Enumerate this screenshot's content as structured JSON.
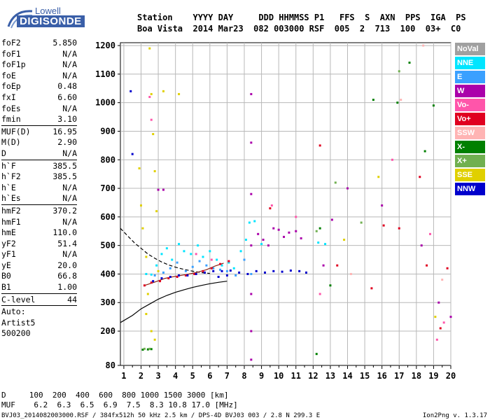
{
  "logo": {
    "line1": "Lowell",
    "line2": "DIGISONDE"
  },
  "header": {
    "labels": "Station    YYYY DAY     DDD HHMMSS P1   FFS  S  AXN  PPS  IGA  PS",
    "values": "Boa Vista  2014 Mar23  082 003000 RSF  005  2  713  100  03+  C0"
  },
  "params": [
    {
      "label": "foF2",
      "value": "5.850"
    },
    {
      "label": "foF1",
      "value": "N/A"
    },
    {
      "label": "foF1p",
      "value": "N/A"
    },
    {
      "label": "foE",
      "value": "N/A"
    },
    {
      "label": "foEp",
      "value": "0.48"
    },
    {
      "label": "fxI",
      "value": "6.60"
    },
    {
      "label": "foEs",
      "value": "N/A"
    },
    {
      "label": "fmin",
      "value": "3.10"
    },
    {
      "label": "MUF(D)",
      "value": "16.95"
    },
    {
      "label": "M(D)",
      "value": "2.90"
    },
    {
      "label": "D",
      "value": "N/A"
    },
    {
      "label": "h`F",
      "value": "385.5"
    },
    {
      "label": "h`F2",
      "value": "385.5"
    },
    {
      "label": "h`E",
      "value": "N/A"
    },
    {
      "label": "h`Es",
      "value": "N/A"
    },
    {
      "label": "hmF2",
      "value": "370.2"
    },
    {
      "label": "hmF1",
      "value": "N/A"
    },
    {
      "label": "hmE",
      "value": "110.0"
    },
    {
      "label": "yF2",
      "value": "51.4"
    },
    {
      "label": "yF1",
      "value": "N/A"
    },
    {
      "label": "yE",
      "value": "20.0"
    },
    {
      "label": "B0",
      "value": "66.8"
    },
    {
      "label": "B1",
      "value": "1.00"
    },
    {
      "label": "C-level",
      "value": "44"
    }
  ],
  "auto": {
    "line1": "Auto:",
    "line2": "Artist5",
    "line3": "500200"
  },
  "legend": [
    {
      "label": "NoVal",
      "color": "#a0a0a0"
    },
    {
      "label": "NNE",
      "color": "#00e5ff"
    },
    {
      "label": "E",
      "color": "#3aa0ff"
    },
    {
      "label": "W",
      "color": "#aa00aa"
    },
    {
      "label": "Vo-",
      "color": "#ff55aa"
    },
    {
      "label": "Vo+",
      "color": "#e00020"
    },
    {
      "label": "SSW",
      "color": "#ffb4b4"
    },
    {
      "label": "X-",
      "color": "#008000"
    },
    {
      "label": "X+",
      "color": "#70b050"
    },
    {
      "label": "SSE",
      "color": "#e0d000"
    },
    {
      "label": "NNW",
      "color": "#0000cc"
    }
  ],
  "muf_table": {
    "d_row": "D     100  200  400  600  800 1000 1500 3000 [km]",
    "muf_row": "MUF    6.2  6.3  6.5  6.9  7.5  8.3 10.8 17.0 [MHz]"
  },
  "footer": {
    "left": "BVJ03_2014082003000.RSF / 384fx512h 50 kHz 2.5 km / DPS-4D BVJ03 003 / 2.8 N 299.3 E",
    "right": "Ion2Png v. 1.3.17"
  },
  "chart_data": {
    "type": "scatter",
    "title": "",
    "xlabel": "",
    "ylabel": "",
    "xlim": [
      0.8,
      20
    ],
    "ylim": [
      80,
      1210
    ],
    "x_ticks": [
      1,
      2,
      3,
      4,
      5,
      6,
      7,
      8,
      9,
      10,
      11,
      12,
      13,
      14,
      15,
      16,
      17,
      18,
      19,
      20
    ],
    "y_ticks": [
      80,
      200,
      300,
      400,
      500,
      600,
      700,
      800,
      900,
      1000,
      1100,
      1200
    ],
    "grid": true,
    "series": [
      {
        "name": "NNE",
        "color": "#00e5ff",
        "points": [
          [
            2.3,
            400
          ],
          [
            2.6,
            398
          ],
          [
            2.9,
            430
          ],
          [
            3.2,
            470
          ],
          [
            3.5,
            490
          ],
          [
            3.8,
            450
          ],
          [
            4.2,
            505
          ],
          [
            4.5,
            480
          ],
          [
            4.9,
            470
          ],
          [
            5.3,
            500
          ],
          [
            5.6,
            460
          ],
          [
            6.0,
            480
          ],
          [
            6.4,
            450
          ],
          [
            6.7,
            430
          ],
          [
            7.1,
            440
          ],
          [
            7.4,
            420
          ],
          [
            7.8,
            480
          ],
          [
            8.1,
            520
          ],
          [
            8.3,
            580
          ],
          [
            8.6,
            585
          ],
          [
            9.0,
            505
          ],
          [
            12.3,
            510
          ],
          [
            12.7,
            505
          ]
        ]
      },
      {
        "name": "E",
        "color": "#3aa0ff",
        "points": [
          [
            2.8,
            395
          ],
          [
            3.3,
            405
          ],
          [
            3.7,
            420
          ],
          [
            4.1,
            440
          ],
          [
            4.6,
            410
          ],
          [
            5.0,
            425
          ],
          [
            5.4,
            445
          ],
          [
            5.8,
            430
          ],
          [
            6.2,
            420
          ],
          [
            6.6,
            415
          ],
          [
            7.0,
            410
          ],
          [
            7.5,
            395
          ],
          [
            8.0,
            450
          ],
          [
            8.4,
            400
          ]
        ]
      },
      {
        "name": "W",
        "color": "#aa00aa",
        "points": [
          [
            8.8,
            540
          ],
          [
            9.1,
            520
          ],
          [
            9.4,
            500
          ],
          [
            9.7,
            560
          ],
          [
            10.0,
            555
          ],
          [
            10.3,
            530
          ],
          [
            10.6,
            545
          ],
          [
            11.0,
            550
          ],
          [
            11.3,
            525
          ],
          [
            8.4,
            1030
          ],
          [
            8.4,
            860
          ],
          [
            8.4,
            680
          ],
          [
            8.4,
            500
          ],
          [
            8.4,
            330
          ],
          [
            8.4,
            200
          ],
          [
            8.4,
            100
          ],
          [
            3.0,
            695
          ],
          [
            3.3,
            695
          ],
          [
            12.6,
            430
          ],
          [
            13.1,
            590
          ],
          [
            14.0,
            700
          ],
          [
            16.0,
            640
          ],
          [
            18.3,
            500
          ],
          [
            19.3,
            300
          ],
          [
            20.0,
            250
          ]
        ]
      },
      {
        "name": "Vo-",
        "color": "#ff55aa",
        "points": [
          [
            2.5,
            1020
          ],
          [
            2.6,
            940
          ],
          [
            5.2,
            470
          ],
          [
            6.1,
            450
          ],
          [
            9.6,
            640
          ],
          [
            11.0,
            600
          ],
          [
            12.4,
            330
          ],
          [
            16.6,
            800
          ],
          [
            18.8,
            540
          ],
          [
            19.2,
            170
          ],
          [
            19.6,
            230
          ]
        ]
      },
      {
        "name": "Vo+",
        "color": "#e00020",
        "points": [
          [
            2.2,
            360
          ],
          [
            2.6,
            370
          ],
          [
            3.1,
            375
          ],
          [
            3.6,
            385
          ],
          [
            4.1,
            390
          ],
          [
            4.6,
            395
          ],
          [
            5.1,
            400
          ],
          [
            5.6,
            410
          ],
          [
            6.1,
            420
          ],
          [
            6.6,
            435
          ],
          [
            7.1,
            445
          ],
          [
            9.5,
            630
          ],
          [
            12.4,
            850
          ],
          [
            13.4,
            430
          ],
          [
            15.4,
            350
          ],
          [
            16.1,
            570
          ],
          [
            17.0,
            560
          ],
          [
            18.2,
            740
          ],
          [
            18.6,
            430
          ],
          [
            19.4,
            210
          ],
          [
            19.8,
            420
          ]
        ]
      },
      {
        "name": "SSW",
        "color": "#ffb4b4",
        "points": [
          [
            17.1,
            1010
          ],
          [
            18.4,
            1200
          ],
          [
            19.5,
            380
          ],
          [
            14.2,
            400
          ]
        ]
      },
      {
        "name": "X-",
        "color": "#008000",
        "points": [
          [
            2.1,
            135
          ],
          [
            2.4,
            136
          ],
          [
            2.6,
            137
          ],
          [
            12.4,
            560
          ],
          [
            13.0,
            360
          ],
          [
            15.5,
            1010
          ],
          [
            16.9,
            1000
          ],
          [
            17.6,
            1140
          ],
          [
            18.5,
            830
          ],
          [
            19.0,
            990
          ],
          [
            12.2,
            120
          ]
        ]
      },
      {
        "name": "X+",
        "color": "#70b050",
        "points": [
          [
            2.2,
            138
          ],
          [
            2.5,
            138
          ],
          [
            12.2,
            550
          ],
          [
            13.3,
            720
          ],
          [
            14.8,
            580
          ],
          [
            17.0,
            1110
          ]
        ]
      },
      {
        "name": "SSE",
        "color": "#e0d000",
        "points": [
          [
            1.9,
            770
          ],
          [
            2.0,
            640
          ],
          [
            2.1,
            560
          ],
          [
            2.3,
            460
          ],
          [
            2.4,
            330
          ],
          [
            2.5,
            1190
          ],
          [
            2.6,
            1030
          ],
          [
            2.7,
            890
          ],
          [
            2.8,
            760
          ],
          [
            2.9,
            620
          ],
          [
            3.0,
            410
          ],
          [
            2.3,
            260
          ],
          [
            2.6,
            200
          ],
          [
            2.8,
            170
          ],
          [
            3.3,
            1040
          ],
          [
            4.2,
            1030
          ],
          [
            13.8,
            520
          ],
          [
            15.8,
            740
          ],
          [
            19.1,
            250
          ]
        ]
      },
      {
        "name": "NNW",
        "color": "#0000cc",
        "points": [
          [
            2.7,
            375
          ],
          [
            3.2,
            385
          ],
          [
            3.7,
            390
          ],
          [
            4.2,
            395
          ],
          [
            4.7,
            395
          ],
          [
            5.2,
            400
          ],
          [
            5.7,
            405
          ],
          [
            6.2,
            410
          ],
          [
            6.7,
            410
          ],
          [
            7.2,
            412
          ],
          [
            7.7,
            405
          ],
          [
            8.2,
            400
          ],
          [
            8.7,
            410
          ],
          [
            9.2,
            405
          ],
          [
            9.7,
            410
          ],
          [
            10.2,
            408
          ],
          [
            10.7,
            412
          ],
          [
            11.2,
            410
          ],
          [
            11.6,
            405
          ],
          [
            1.4,
            1040
          ],
          [
            1.5,
            820
          ],
          [
            6.5,
            390
          ],
          [
            7.0,
            395
          ]
        ]
      }
    ],
    "curves": [
      {
        "name": "profile-solid",
        "style": "solid",
        "color": "#000000",
        "points": [
          [
            0.8,
            230
          ],
          [
            1.5,
            255
          ],
          [
            2.0,
            278
          ],
          [
            2.5,
            295
          ],
          [
            3.0,
            312
          ],
          [
            3.5,
            325
          ],
          [
            4.0,
            336
          ],
          [
            4.5,
            345
          ],
          [
            5.0,
            353
          ],
          [
            5.5,
            360
          ],
          [
            6.0,
            366
          ],
          [
            6.5,
            371
          ],
          [
            7.0,
            375
          ]
        ]
      },
      {
        "name": "profile-dashed",
        "style": "dashed",
        "color": "#000000",
        "points": [
          [
            0.8,
            560
          ],
          [
            1.2,
            535
          ],
          [
            1.6,
            510
          ],
          [
            2.0,
            490
          ],
          [
            2.4,
            470
          ],
          [
            2.8,
            455
          ],
          [
            3.2,
            442
          ],
          [
            3.6,
            432
          ],
          [
            4.0,
            424
          ],
          [
            4.5,
            416
          ],
          [
            5.0,
            410
          ],
          [
            5.5,
            405
          ],
          [
            6.0,
            402
          ]
        ]
      },
      {
        "name": "trace-fit",
        "style": "solid",
        "color": "#8b2010",
        "points": [
          [
            2.2,
            360
          ],
          [
            2.8,
            372
          ],
          [
            3.4,
            385
          ],
          [
            4.0,
            392
          ],
          [
            4.6,
            398
          ],
          [
            5.2,
            405
          ],
          [
            5.8,
            415
          ],
          [
            6.3,
            428
          ],
          [
            6.8,
            438
          ]
        ]
      }
    ]
  }
}
